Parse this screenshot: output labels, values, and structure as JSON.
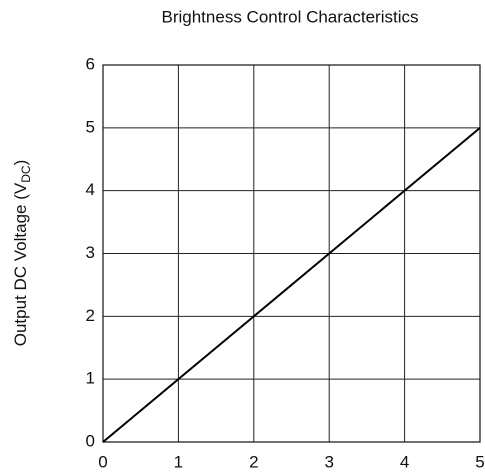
{
  "chart_data": {
    "type": "line",
    "title": "Brightness Control Characteristics",
    "y_label": {
      "text": "Output DC Voltage (V",
      "subscript": "DC",
      "suffix": ")"
    },
    "x": [
      0,
      1,
      2,
      3,
      4,
      5
    ],
    "series": [
      {
        "color": "#000000",
        "values": [
          0,
          1,
          2,
          3,
          4,
          5
        ]
      }
    ],
    "xlim": [
      0,
      5
    ],
    "xticks": [
      0,
      1,
      2,
      3,
      4,
      5
    ],
    "ylim": [
      0,
      6
    ],
    "yticks": [
      0,
      1,
      2,
      3,
      4,
      5,
      6
    ],
    "grid": true
  }
}
